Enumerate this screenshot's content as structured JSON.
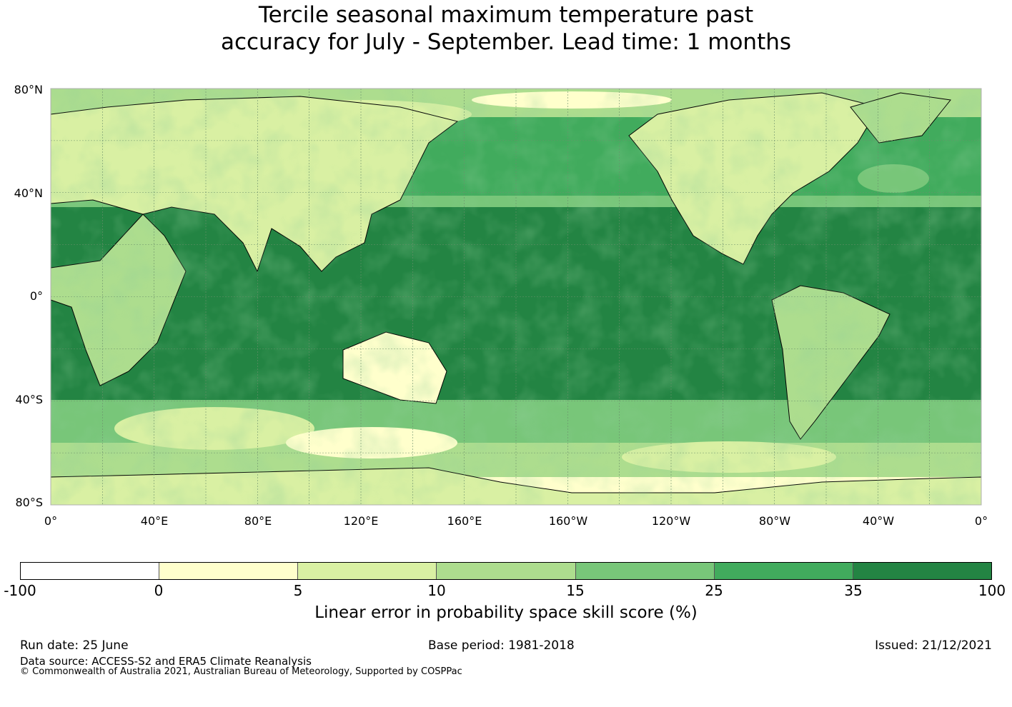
{
  "title": {
    "line1": "Tercile seasonal maximum temperature past",
    "line2": "accuracy for July - September. Lead time: 1 months"
  },
  "map": {
    "projection": "Plate Carree, Pacific-centred",
    "lat_labels": [
      "80°N",
      "40°N",
      "0°",
      "40°S",
      "80°S"
    ],
    "lon_labels": [
      "0°",
      "40°E",
      "80°E",
      "120°E",
      "160°E",
      "160°W",
      "120°W",
      "80°W",
      "40°W",
      "0°"
    ],
    "ocean_colour": "#238443",
    "colours": [
      "#ffffff",
      "#ffffcc",
      "#d9f0a3",
      "#addd8e",
      "#78c679",
      "#41ab5d",
      "#238443"
    ]
  },
  "colorbar": {
    "tick_labels": [
      "-100",
      "0",
      "5",
      "10",
      "15",
      "25",
      "35",
      "100"
    ],
    "title": "Linear error in probability space skill score (%)"
  },
  "footer": {
    "run_date": "Run date: 25 June",
    "base_period": "Base period: 1981-2018",
    "issued": "Issued: 21/12/2021",
    "data_source": "Data source: ACCESS-S2 and ERA5 Climate Reanalysis",
    "copyright": "© Commonwealth of Australia 2021, Australian Bureau of Meteorology, Supported by COSPPac"
  }
}
